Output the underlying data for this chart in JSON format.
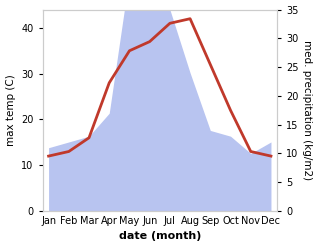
{
  "months": [
    "Jan",
    "Feb",
    "Mar",
    "Apr",
    "May",
    "Jun",
    "Jul",
    "Aug",
    "Sep",
    "Oct",
    "Nov",
    "Dec"
  ],
  "temperature": [
    12,
    13,
    16,
    28,
    35,
    37,
    41,
    42,
    32,
    22,
    13,
    12
  ],
  "precipitation": [
    11,
    12,
    13,
    17,
    41,
    37,
    35,
    24,
    14,
    13,
    10,
    12
  ],
  "temp_color": "#c0392b",
  "precip_fill_color": "#b8c4f0",
  "ylim_left": [
    0,
    44
  ],
  "ylim_right": [
    0,
    35
  ],
  "yticks_left": [
    0,
    10,
    20,
    30,
    40
  ],
  "yticks_right": [
    0,
    5,
    10,
    15,
    20,
    25,
    30,
    35
  ],
  "xlabel": "date (month)",
  "ylabel_left": "max temp (C)",
  "ylabel_right": "med. precipitation (kg/m2)",
  "background_color": "#ffffff",
  "temp_linewidth": 2.0,
  "xlabel_fontsize": 8,
  "ylabel_fontsize": 7.5,
  "tick_fontsize": 7,
  "figsize": [
    3.18,
    2.47
  ],
  "dpi": 100
}
